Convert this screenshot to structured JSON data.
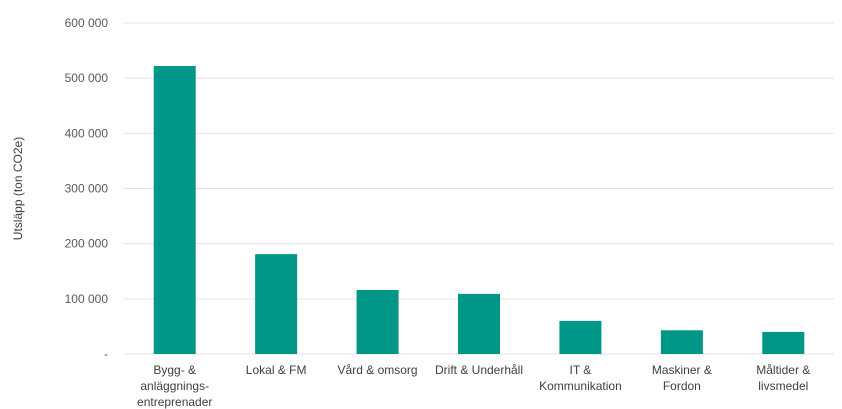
{
  "chart_data": {
    "type": "bar",
    "ylabel": "Utsläpp (ton CO2e)",
    "categories": [
      [
        "Bygg- &",
        "anläggnings-",
        "entreprenader"
      ],
      [
        "Lokal & FM"
      ],
      [
        "Vård & omsorg"
      ],
      [
        "Drift & Underhåll"
      ],
      [
        "IT &",
        "Kommunikation"
      ],
      [
        "Maskiner &",
        "Fordon"
      ],
      [
        "Måltider &",
        "livsmedel"
      ]
    ],
    "values": [
      522000,
      181000,
      116000,
      109000,
      60000,
      43000,
      40000
    ],
    "ylim": [
      0,
      600000
    ],
    "yticks": [
      0,
      100000,
      200000,
      300000,
      400000,
      500000,
      600000
    ],
    "ytick_labels": [
      "-",
      "100 000",
      "200 000",
      "300 000",
      "400 000",
      "500 000",
      "600 000"
    ],
    "bar_color": "#009688",
    "grid": true
  }
}
